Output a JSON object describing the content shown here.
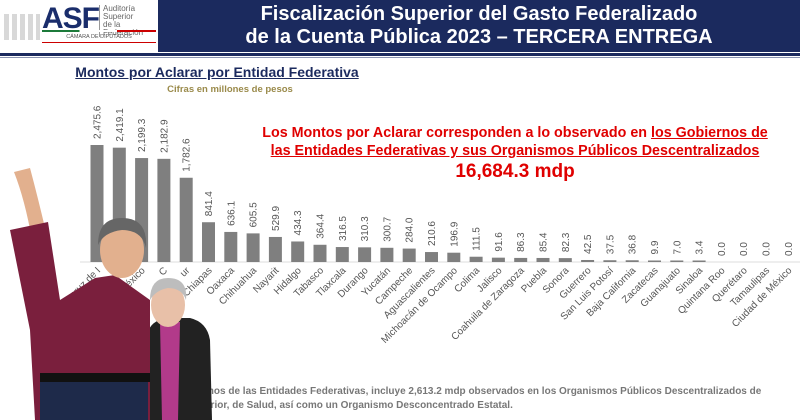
{
  "header": {
    "logo": {
      "mark": "ASF",
      "line1": "Auditoría",
      "line2": "Superior",
      "line3": "de la Federación",
      "line4": "CÁMARA DE DIPUTADOS"
    },
    "title_line1": "Fiscalización Superior del Gasto Federalizado",
    "title_line2": "de la Cuenta Pública 2023 – TERCERA ENTREGA"
  },
  "colors": {
    "navy": "#1b2a5e",
    "bar": "#7f7f7f",
    "accent_red": "#e00000",
    "subtitle": "#9a8a4a"
  },
  "chart_data": {
    "type": "bar",
    "title": "Montos por Aclarar por Entidad Federativa",
    "subtitle": "Cifras en millones de pesos",
    "categories": [
      "eracruz de I",
      "os",
      "éxico",
      "C",
      "ur",
      "Chiapas",
      "Oaxaca",
      "Chihuahua",
      "Nayarit",
      "Hidalgo",
      "Tabasco",
      "Tlaxcala",
      "Durango",
      "Yucatán",
      "Campeche",
      "Aguascalientes",
      "Michoacán de Ocampo",
      "Colima",
      "Jalisco",
      "Coahuila de Zaragoza",
      "Puebla",
      "Sonora",
      "Guerrero",
      "San Luis Potosí",
      "Baja California",
      "Zacatecas",
      "Guanajuato",
      "Sinaloa",
      "Quintana Roo",
      "Querétaro",
      "Tamaulipas",
      "Ciudad de México"
    ],
    "values": [
      2475.6,
      2419.1,
      2199.3,
      2182.9,
      1782.6,
      841.4,
      636.1,
      605.5,
      529.9,
      434.3,
      364.4,
      316.5,
      310.3,
      300.7,
      284.0,
      210.6,
      196.9,
      111.5,
      91.6,
      86.3,
      85.4,
      82.3,
      42.5,
      37.5,
      36.8,
      9.9,
      7.0,
      3.4,
      0.0,
      0.0,
      0.0,
      0.0
    ],
    "value_labels": [
      "2,475.6",
      "2,419.1",
      "2,199.3",
      "2,182.9",
      "1,782.6",
      "841.4",
      "636.1",
      "605.5",
      "529.9",
      "434.3",
      "364.4",
      "316.5",
      "310.3",
      "300.7",
      "284.0",
      "210.6",
      "196.9",
      "111.5",
      "91.6",
      "86.3",
      "85.4",
      "82.3",
      "42.5",
      "37.5",
      "36.8",
      "9.9",
      "7.0",
      "3.4",
      "0.0",
      "0.0",
      "0.0",
      "0.0"
    ],
    "ylim": [
      0,
      2500
    ],
    "grid": false,
    "legend": "none"
  },
  "note": {
    "text_plain": "Los Montos por Aclarar corresponden a lo observado en ",
    "text_underlined1": "los Gobiernos de",
    "text_underlined2": "las Entidades Federativas y sus Organismos Públicos Descentralizados",
    "total": "16,684.3 mdp"
  },
  "footnote": {
    "line1": "mos de las Entidades Federativas, incluye 2,613.2 mdp observados en los Organismos Públicos Descentralizados de",
    "line2": "erior, de Salud, así como un Organismo Desconcentrado Estatal."
  }
}
